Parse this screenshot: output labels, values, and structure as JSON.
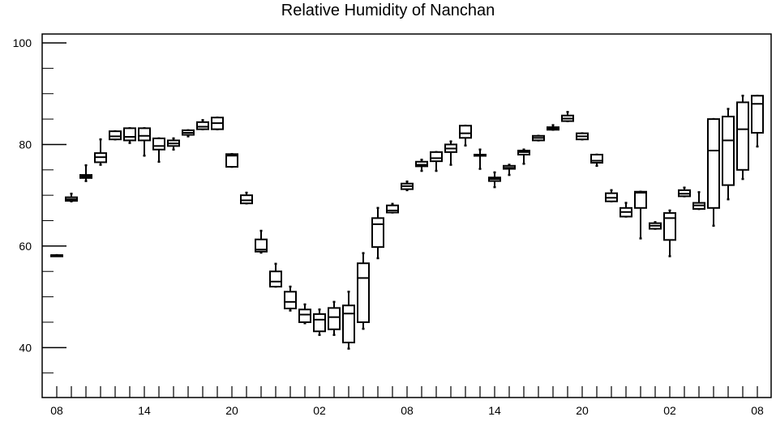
{
  "chart_data": {
    "type": "box",
    "title": "Relative Humidity of Nanchan",
    "xlabel": "",
    "ylabel": "",
    "ylim": [
      30,
      102
    ],
    "yticks": [
      40,
      60,
      80,
      100
    ],
    "ytick_labels": [
      "40",
      "60",
      "80",
      "100"
    ],
    "x_tick_labels": [
      "08",
      "14",
      "20",
      "02",
      "08",
      "14",
      "20",
      "02",
      "08"
    ],
    "x_tick_hours": [
      0,
      6,
      12,
      18,
      24,
      30,
      36,
      42,
      48
    ],
    "interval_hours": 1,
    "boxes": [
      {
        "hour": 0,
        "whisker_low": 58.2,
        "q1": 58.2,
        "median": 58.2,
        "q3": 58.2,
        "whisker_high": 58.2
      },
      {
        "hour": 1,
        "whisker_low": 68.8,
        "q1": 68.9,
        "median": 69.2,
        "q3": 69.6,
        "whisker_high": 70.3
      },
      {
        "hour": 2,
        "whisker_low": 72.8,
        "q1": 73.4,
        "median": 73.7,
        "q3": 74.0,
        "whisker_high": 75.9
      },
      {
        "hour": 3,
        "whisker_low": 76.0,
        "q1": 76.5,
        "median": 77.5,
        "q3": 78.3,
        "whisker_high": 81.0
      },
      {
        "hour": 4,
        "whisker_low": 81.0,
        "q1": 81.0,
        "median": 81.6,
        "q3": 82.6,
        "whisker_high": 82.6
      },
      {
        "hour": 5,
        "whisker_low": 80.3,
        "q1": 80.8,
        "median": 81.5,
        "q3": 83.2,
        "whisker_high": 83.2
      },
      {
        "hour": 6,
        "whisker_low": 77.8,
        "q1": 80.8,
        "median": 81.7,
        "q3": 83.2,
        "whisker_high": 83.2
      },
      {
        "hour": 7,
        "whisker_low": 76.6,
        "q1": 79.0,
        "median": 79.7,
        "q3": 81.2,
        "whisker_high": 81.2
      },
      {
        "hour": 8,
        "whisker_low": 79.0,
        "q1": 79.7,
        "median": 80.2,
        "q3": 80.8,
        "whisker_high": 81.2
      },
      {
        "hour": 9,
        "whisker_low": 81.6,
        "q1": 81.9,
        "median": 82.3,
        "q3": 82.8,
        "whisker_high": 82.8
      },
      {
        "hour": 10,
        "whisker_low": 83.0,
        "q1": 83.0,
        "median": 83.5,
        "q3": 84.4,
        "whisker_high": 84.8
      },
      {
        "hour": 11,
        "whisker_low": 83.0,
        "q1": 83.0,
        "median": 84.2,
        "q3": 85.3,
        "whisker_high": 85.3
      },
      {
        "hour": 12,
        "whisker_low": 75.6,
        "q1": 75.6,
        "median": 77.8,
        "q3": 78.1,
        "whisker_high": 78.1
      },
      {
        "hour": 13,
        "whisker_low": 68.4,
        "q1": 68.4,
        "median": 69.0,
        "q3": 70.0,
        "whisker_high": 70.5
      },
      {
        "hour": 14,
        "whisker_low": 58.7,
        "q1": 58.9,
        "median": 59.3,
        "q3": 61.3,
        "whisker_high": 63.0
      },
      {
        "hour": 15,
        "whisker_low": 52.0,
        "q1": 52.0,
        "median": 53.0,
        "q3": 55.0,
        "whisker_high": 56.5
      },
      {
        "hour": 16,
        "whisker_low": 47.3,
        "q1": 47.7,
        "median": 49.0,
        "q3": 51.0,
        "whisker_high": 52.0
      },
      {
        "hour": 17,
        "whisker_low": 44.8,
        "q1": 45.0,
        "median": 46.5,
        "q3": 47.5,
        "whisker_high": 48.5
      },
      {
        "hour": 18,
        "whisker_low": 42.5,
        "q1": 43.2,
        "median": 45.5,
        "q3": 46.6,
        "whisker_high": 47.5
      },
      {
        "hour": 19,
        "whisker_low": 42.5,
        "q1": 43.6,
        "median": 46.0,
        "q3": 47.8,
        "whisker_high": 49.0
      },
      {
        "hour": 20,
        "whisker_low": 39.8,
        "q1": 41.0,
        "median": 46.7,
        "q3": 48.3,
        "whisker_high": 51.0
      },
      {
        "hour": 21,
        "whisker_low": 43.7,
        "q1": 45.0,
        "median": 53.7,
        "q3": 56.6,
        "whisker_high": 58.6
      },
      {
        "hour": 22,
        "whisker_low": 57.6,
        "q1": 59.8,
        "median": 64.3,
        "q3": 65.5,
        "whisker_high": 67.5
      },
      {
        "hour": 23,
        "whisker_low": 66.6,
        "q1": 66.6,
        "median": 67.0,
        "q3": 68.0,
        "whisker_high": 68.3
      },
      {
        "hour": 24,
        "whisker_low": 71.0,
        "q1": 71.2,
        "median": 71.8,
        "q3": 72.3,
        "whisker_high": 72.7
      },
      {
        "hour": 25,
        "whisker_low": 74.8,
        "q1": 75.7,
        "median": 76.0,
        "q3": 76.6,
        "whisker_high": 77.0
      },
      {
        "hour": 26,
        "whisker_low": 74.8,
        "q1": 76.7,
        "median": 77.3,
        "q3": 78.5,
        "whisker_high": 78.5
      },
      {
        "hour": 27,
        "whisker_low": 76.0,
        "q1": 78.5,
        "median": 79.2,
        "q3": 80.0,
        "whisker_high": 80.6
      },
      {
        "hour": 28,
        "whisker_low": 79.8,
        "q1": 81.3,
        "median": 82.2,
        "q3": 83.7,
        "whisker_high": 83.7
      },
      {
        "hour": 29,
        "whisker_low": 75.2,
        "q1": 78.0,
        "median": 78.0,
        "q3": 78.0,
        "whisker_high": 79.0
      },
      {
        "hour": 30,
        "whisker_low": 71.6,
        "q1": 72.8,
        "median": 73.2,
        "q3": 73.5,
        "whisker_high": 74.5
      },
      {
        "hour": 31,
        "whisker_low": 74.0,
        "q1": 75.2,
        "median": 75.4,
        "q3": 75.8,
        "whisker_high": 76.0
      },
      {
        "hour": 32,
        "whisker_low": 76.2,
        "q1": 78.0,
        "median": 78.5,
        "q3": 78.8,
        "whisker_high": 79.0
      },
      {
        "hour": 33,
        "whisker_low": 80.8,
        "q1": 80.8,
        "median": 81.3,
        "q3": 81.7,
        "whisker_high": 81.7
      },
      {
        "hour": 34,
        "whisker_low": 82.9,
        "q1": 82.9,
        "median": 83.1,
        "q3": 83.4,
        "whisker_high": 83.8
      },
      {
        "hour": 35,
        "whisker_low": 84.6,
        "q1": 84.6,
        "median": 85.1,
        "q3": 85.7,
        "whisker_high": 86.4
      },
      {
        "hour": 36,
        "whisker_low": 81.0,
        "q1": 81.0,
        "median": 81.6,
        "q3": 82.2,
        "whisker_high": 82.2
      },
      {
        "hour": 37,
        "whisker_low": 75.8,
        "q1": 76.4,
        "median": 76.8,
        "q3": 78.0,
        "whisker_high": 78.0
      },
      {
        "hour": 38,
        "whisker_low": 68.8,
        "q1": 68.8,
        "median": 69.5,
        "q3": 70.4,
        "whisker_high": 71.0
      },
      {
        "hour": 39,
        "whisker_low": 65.8,
        "q1": 65.8,
        "median": 66.7,
        "q3": 67.5,
        "whisker_high": 68.5
      },
      {
        "hour": 40,
        "whisker_low": 61.5,
        "q1": 67.5,
        "median": 70.5,
        "q3": 70.7,
        "whisker_high": 70.7
      },
      {
        "hour": 41,
        "whisker_low": 63.4,
        "q1": 63.4,
        "median": 64.0,
        "q3": 64.5,
        "whisker_high": 64.7
      },
      {
        "hour": 42,
        "whisker_low": 58.0,
        "q1": 61.2,
        "median": 65.5,
        "q3": 66.5,
        "whisker_high": 67.0
      },
      {
        "hour": 43,
        "whisker_low": 69.8,
        "q1": 69.8,
        "median": 70.3,
        "q3": 71.0,
        "whisker_high": 71.5
      },
      {
        "hour": 44,
        "whisker_low": 67.3,
        "q1": 67.3,
        "median": 68.0,
        "q3": 68.5,
        "whisker_high": 70.6
      },
      {
        "hour": 45,
        "whisker_low": 64.0,
        "q1": 67.5,
        "median": 78.8,
        "q3": 85.0,
        "whisker_high": 85.0
      },
      {
        "hour": 46,
        "whisker_low": 69.2,
        "q1": 72.0,
        "median": 80.8,
        "q3": 85.5,
        "whisker_high": 87.0
      },
      {
        "hour": 47,
        "whisker_low": 73.2,
        "q1": 75.0,
        "median": 83.0,
        "q3": 88.3,
        "whisker_high": 89.6
      },
      {
        "hour": 48,
        "whisker_low": 79.6,
        "q1": 82.3,
        "median": 88.0,
        "q3": 89.6,
        "whisker_high": 89.6
      }
    ]
  }
}
